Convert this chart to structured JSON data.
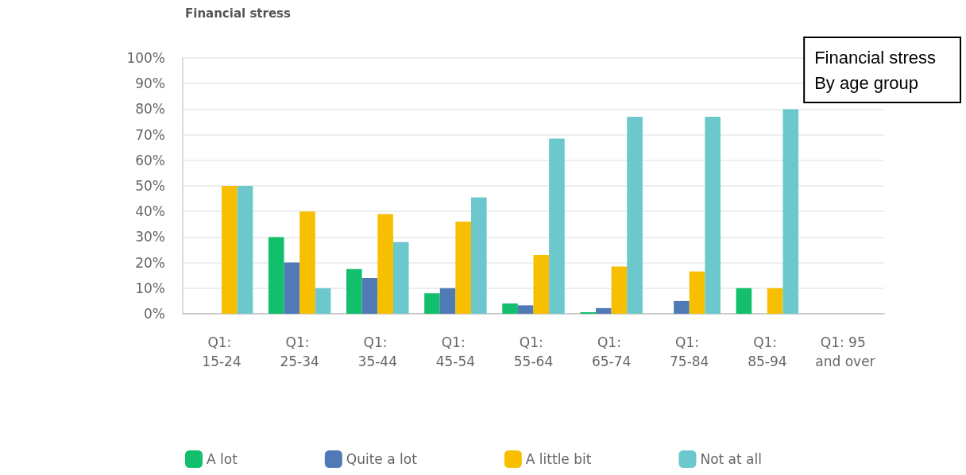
{
  "chart_data": {
    "type": "bar",
    "title": "Financial stress",
    "annotations": [
      "Financial stress\nBy age group"
    ],
    "categories": [
      "Q1: 15-24",
      "Q1: 25-34",
      "Q1: 35-44",
      "Q1: 45-54",
      "Q1: 55-64",
      "Q1: 65-74",
      "Q1: 75-84",
      "Q1: 85-94",
      "Q1: 95 and over"
    ],
    "series": [
      {
        "name": "A lot",
        "color": "#12bf6c",
        "values": [
          0,
          30,
          17.5,
          8,
          4,
          0.6,
          0,
          10,
          0
        ]
      },
      {
        "name": "Quite a lot",
        "color": "#507ab5",
        "values": [
          0,
          20,
          14,
          10,
          3.3,
          2.2,
          5,
          0,
          0
        ]
      },
      {
        "name": "A little bit",
        "color": "#f8bf00",
        "values": [
          50,
          40,
          39,
          36,
          23,
          18.5,
          16.5,
          10,
          0
        ]
      },
      {
        "name": "Not at all",
        "color": "#6cc8cc",
        "values": [
          50,
          10,
          28,
          45.5,
          68.5,
          77,
          77,
          80,
          0
        ]
      }
    ],
    "ylim": [
      0,
      100
    ],
    "yticks": [
      {
        "value": 0,
        "label": "0%"
      },
      {
        "value": 10,
        "label": "10%"
      },
      {
        "value": 20,
        "label": "20%"
      },
      {
        "value": 30,
        "label": "30%"
      },
      {
        "value": 40,
        "label": "40%"
      },
      {
        "value": 50,
        "label": "50%"
      },
      {
        "value": 60,
        "label": "60%"
      },
      {
        "value": 70,
        "label": "70%"
      },
      {
        "value": 80,
        "label": "80%"
      },
      {
        "value": 90,
        "label": "90%"
      },
      {
        "value": 100,
        "label": "100%"
      }
    ],
    "grid": "y",
    "legend": "bottom left"
  }
}
